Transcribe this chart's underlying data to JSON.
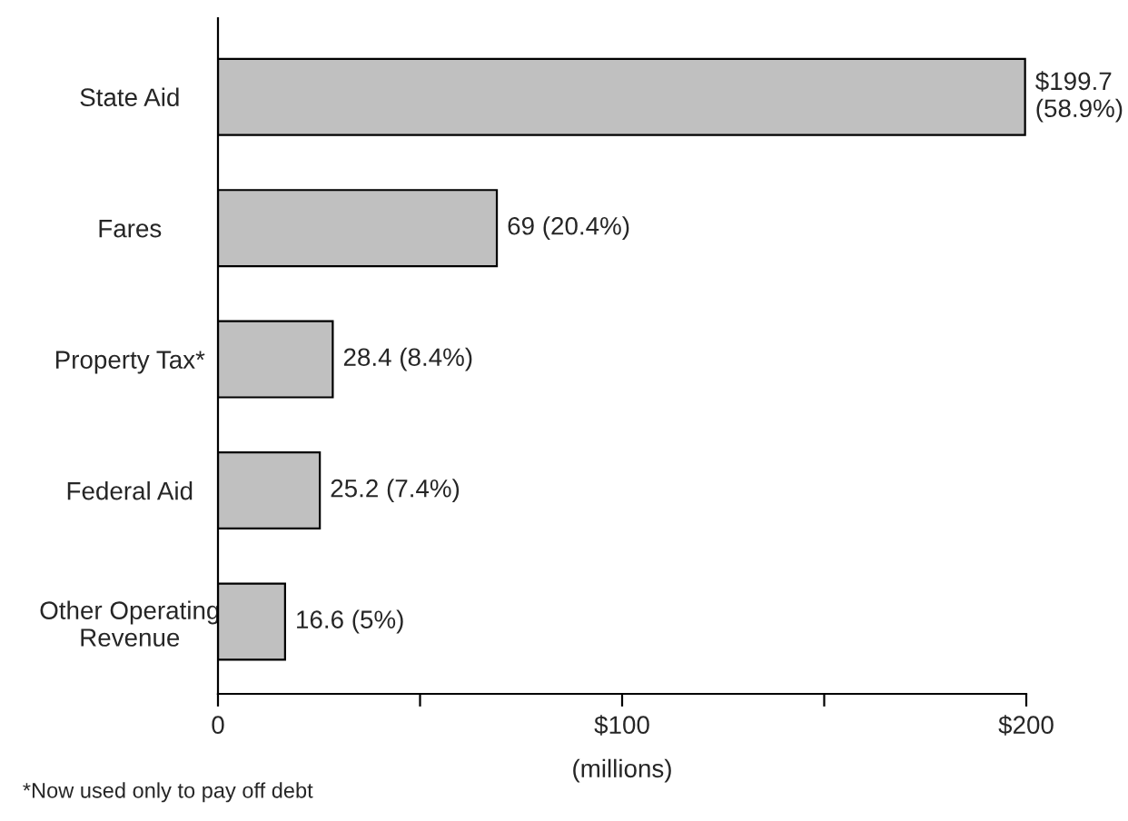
{
  "chart_data": {
    "type": "bar",
    "orientation": "horizontal",
    "xlabel": "(millions)",
    "categories": [
      "State Aid",
      "Fares",
      "Property Tax*",
      "Federal Aid",
      "Other Operating\nRevenue"
    ],
    "values": [
      199.7,
      69,
      28.4,
      25.2,
      16.6
    ],
    "value_labels": [
      "$199.7\n(58.9%)",
      "69 (20.4%)",
      "28.4 (8.4%)",
      "25.2 (7.4%)",
      "16.6 (5%)"
    ],
    "color": "#c0c0c0",
    "xlim": [
      0,
      200
    ],
    "xticks": [
      0,
      {
        "value": 50,
        "label": null
      },
      {
        "value": 100,
        "label": "$100"
      },
      {
        "value": 150,
        "label": null
      },
      {
        "value": 200,
        "label": "$200"
      }
    ],
    "annotations": [
      "*Now used only to pay off debt"
    ],
    "grid": false,
    "legend": false
  }
}
